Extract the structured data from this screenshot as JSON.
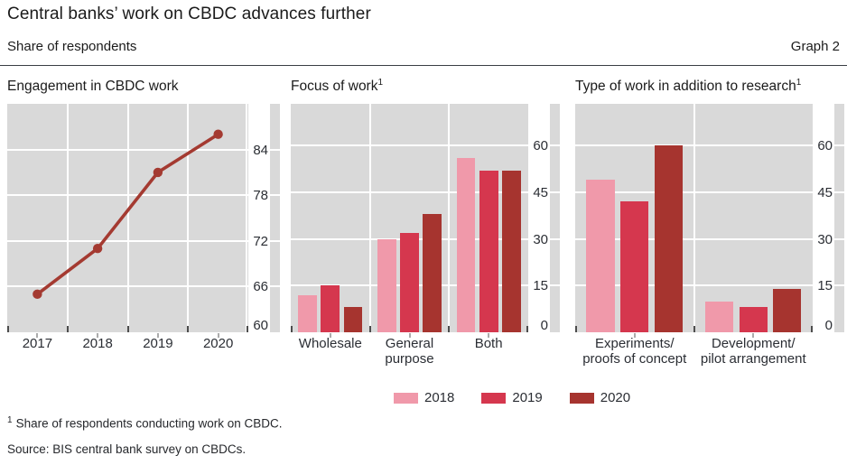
{
  "header": {
    "title": "Central banks’ work on CBDC advances further",
    "subtitle": "Share of respondents",
    "graph_label": "Graph 2"
  },
  "colors": {
    "plot_background": "#d9d9d9",
    "gridline": "#ffffff",
    "year_2018": "#f099aa",
    "year_2019": "#d5374e",
    "year_2020": "#a6342f",
    "line": "#a43a31"
  },
  "legend": {
    "items": [
      {
        "label": "2018",
        "color": "#f099aa"
      },
      {
        "label": "2019",
        "color": "#d5374e"
      },
      {
        "label": "2020",
        "color": "#a6342f"
      }
    ]
  },
  "footnote": {
    "marker": "1",
    "text": "Share of respondents conducting work on CBDC."
  },
  "source": "Source: BIS central bank survey on CBDCs.",
  "chart_data": [
    {
      "type": "line",
      "title": "Engagement in CBDC work",
      "title_sup": "",
      "x": [
        "2017",
        "2018",
        "2019",
        "2020"
      ],
      "series": [
        {
          "name": "Share of respondents engaged in CBDC work",
          "values": [
            65,
            71,
            81,
            86
          ],
          "color": "#a43a31"
        }
      ],
      "ylim": [
        60,
        90
      ],
      "yticks": [
        60,
        66,
        72,
        78,
        84
      ],
      "grid": true,
      "axis_side": "right"
    },
    {
      "type": "bar",
      "title": "Focus of work",
      "title_sup": "1",
      "categories": [
        "Wholesale",
        "General\npurpose",
        "Both"
      ],
      "series": [
        {
          "name": "2018",
          "values": [
            12,
            30,
            56
          ],
          "color": "#f099aa"
        },
        {
          "name": "2019",
          "values": [
            15,
            32,
            52
          ],
          "color": "#d5374e"
        },
        {
          "name": "2020",
          "values": [
            8,
            38,
            52
          ],
          "color": "#a6342f"
        }
      ],
      "ylim": [
        0,
        73.5
      ],
      "yticks": [
        0,
        15,
        30,
        45,
        60
      ],
      "grid": true,
      "axis_side": "right"
    },
    {
      "type": "bar",
      "title": "Type of work in addition to research",
      "title_sup": "1",
      "categories": [
        "Experiments/\nproofs of concept",
        "Development/\npilot arrangement"
      ],
      "series": [
        {
          "name": "2018",
          "values": [
            49,
            10
          ],
          "color": "#f099aa"
        },
        {
          "name": "2019",
          "values": [
            42,
            8
          ],
          "color": "#d5374e"
        },
        {
          "name": "2020",
          "values": [
            60,
            14
          ],
          "color": "#a6342f"
        }
      ],
      "ylim": [
        0,
        73.5
      ],
      "yticks": [
        0,
        15,
        30,
        45,
        60
      ],
      "grid": true,
      "axis_side": "right"
    }
  ]
}
